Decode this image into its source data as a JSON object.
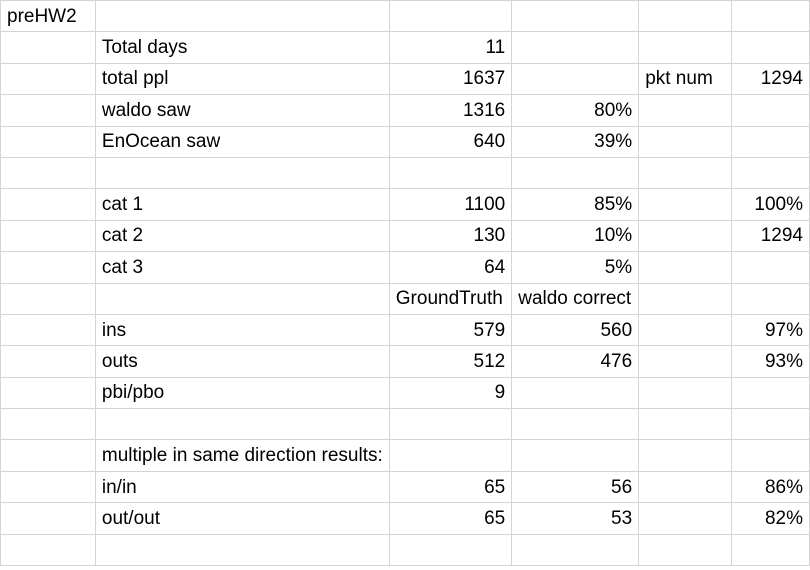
{
  "sheet_name": "preHW2",
  "rows": [
    [
      "preHW2",
      "",
      "",
      "",
      "",
      ""
    ],
    [
      "",
      "Total days",
      "11",
      "",
      "",
      ""
    ],
    [
      "",
      "total ppl",
      "1637",
      "",
      "pkt num",
      "1294"
    ],
    [
      "",
      "waldo saw",
      "1316",
      "80%",
      "",
      ""
    ],
    [
      "",
      "EnOcean saw",
      "640",
      "39%",
      "",
      ""
    ],
    [
      "",
      "",
      "",
      "",
      "",
      ""
    ],
    [
      "",
      "cat 1",
      "1100",
      "85%",
      "",
      "100%"
    ],
    [
      "",
      "cat 2",
      "130",
      "10%",
      "",
      "1294"
    ],
    [
      "",
      "cat 3",
      "64",
      "5%",
      "",
      ""
    ],
    [
      "",
      "",
      "GroundTruth",
      "waldo correct",
      "",
      ""
    ],
    [
      "",
      "ins",
      "579",
      "560",
      "",
      "97%"
    ],
    [
      "",
      "outs",
      "512",
      "476",
      "",
      "93%"
    ],
    [
      "",
      "pbi/pbo",
      "9",
      "",
      "",
      ""
    ],
    [
      "",
      "",
      "",
      "",
      "",
      ""
    ],
    [
      "",
      "multiple in same direction results:",
      "",
      "",
      "",
      ""
    ],
    [
      "",
      "in/in",
      "65",
      "56",
      "",
      "86%"
    ],
    [
      "",
      "out/out",
      "65",
      "53",
      "",
      "82%"
    ],
    [
      "",
      "",
      "",
      "",
      "",
      ""
    ]
  ]
}
